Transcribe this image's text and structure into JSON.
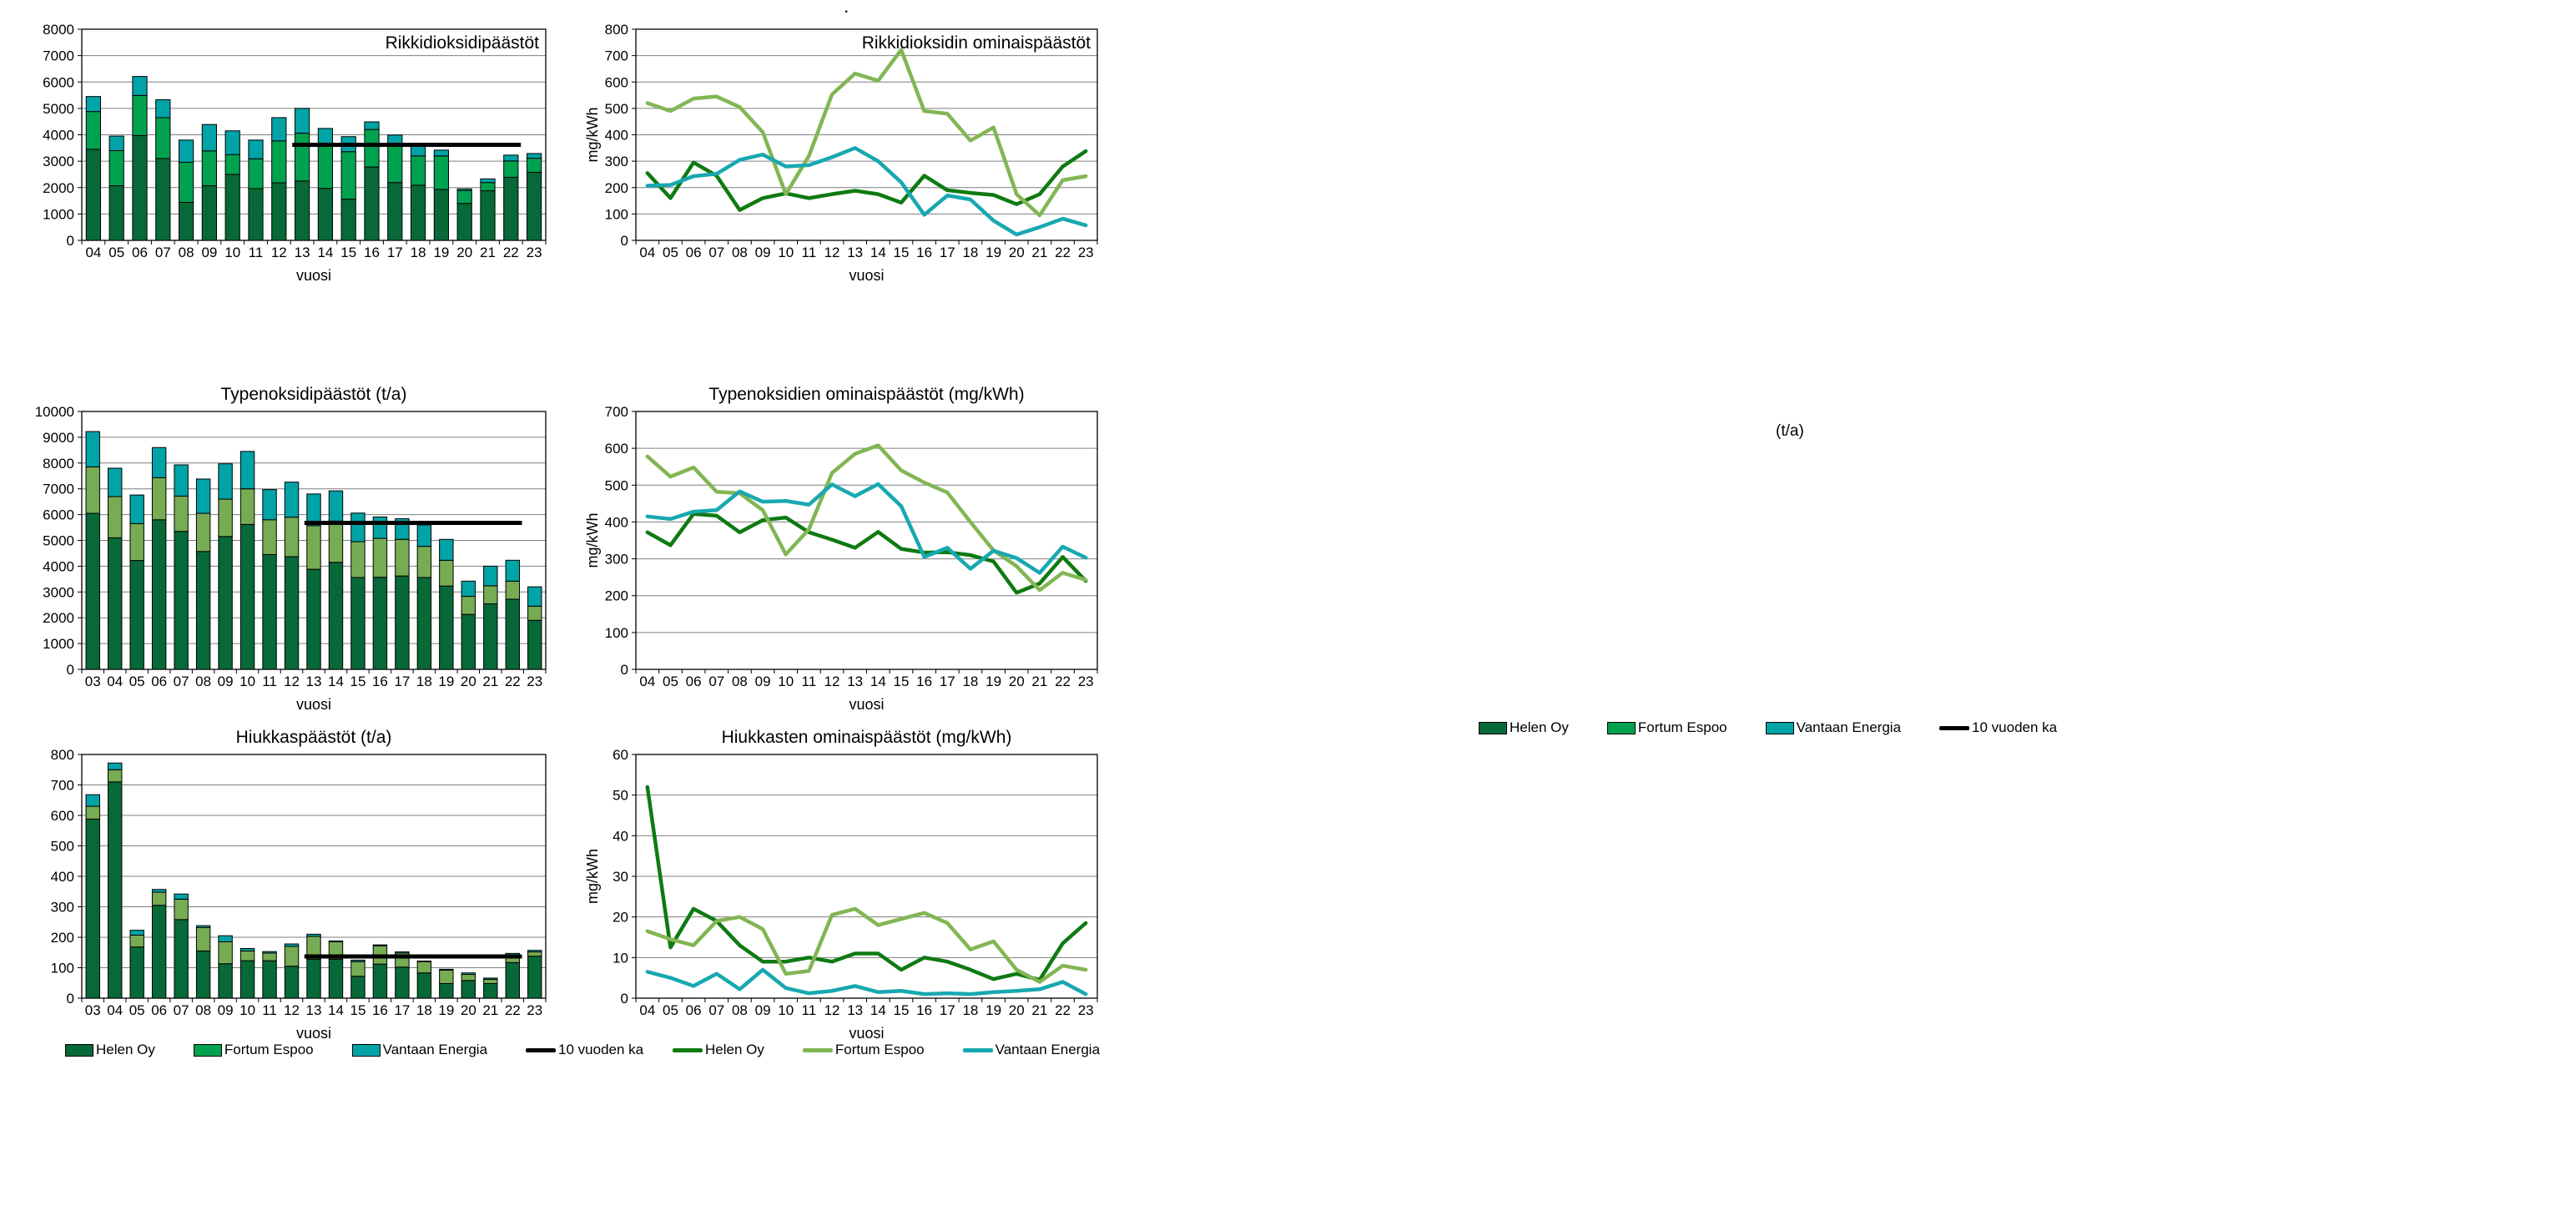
{
  "page": {
    "background": "#ffffff",
    "annotations": {
      "ta_label": "(t/a)",
      "stray_dot": "."
    }
  },
  "colors": {
    "bar_helen": "#066937",
    "bar_fortum_green": "#00A24F",
    "bar_fortum_light": "#76AC53",
    "bar_vantaan": "#00A3A6",
    "line_helen": "#0E7A12",
    "line_fortum": "#82B654",
    "line_vantaan": "#17A8B0",
    "avg_line": "#000000",
    "gridline": "#7F7F7F"
  },
  "legends": {
    "bar_left": {
      "items": [
        {
          "label": "Helen Oy",
          "color": "#066937",
          "swatch": "box"
        },
        {
          "label": "Fortum Espoo",
          "color": "#00A24F",
          "swatch": "box"
        },
        {
          "label": "Vantaan Energia",
          "color": "#00A3A6",
          "swatch": "box"
        },
        {
          "label": "10 vuoden ka",
          "color": "#000000",
          "swatch": "line"
        }
      ]
    },
    "line_bottom": {
      "items": [
        {
          "label": "Helen Oy",
          "color": "#0E7A12",
          "swatch": "line"
        },
        {
          "label": "Fortum Espoo",
          "color": "#82B654",
          "swatch": "line"
        },
        {
          "label": "Vantaan Energia",
          "color": "#17A8B0",
          "swatch": "line"
        }
      ]
    },
    "bar_right": {
      "items": [
        {
          "label": "Helen Oy",
          "color": "#066937",
          "swatch": "box"
        },
        {
          "label": "Fortum Espoo",
          "color": "#00A24F",
          "swatch": "box"
        },
        {
          "label": "Vantaan Energia",
          "color": "#00A3A6",
          "swatch": "box"
        },
        {
          "label": "10 vuoden ka",
          "color": "#000000",
          "swatch": "line"
        }
      ]
    }
  },
  "chart_data": [
    {
      "id": "so2-emissions",
      "type": "bar",
      "stacked": true,
      "title": "Rikkidioksidipäästöt",
      "title_position": "inside-top-right",
      "xlabel": "vuosi",
      "ylabel": "",
      "ylim": [
        0,
        8000
      ],
      "ytick_interval": 1000,
      "grid": true,
      "categories": [
        "04",
        "05",
        "06",
        "07",
        "08",
        "09",
        "10",
        "11",
        "12",
        "13",
        "14",
        "15",
        "16",
        "17",
        "18",
        "19",
        "20",
        "21",
        "22",
        "23"
      ],
      "series": [
        {
          "name": "Helen Oy",
          "color": "#066937",
          "values": [
            3450,
            2070,
            3970,
            3100,
            1440,
            2070,
            2500,
            1960,
            2180,
            2250,
            1970,
            1560,
            2780,
            2190,
            2090,
            1930,
            1400,
            1880,
            2390,
            2580
          ]
        },
        {
          "name": "Fortum Espoo",
          "color": "#00A24F",
          "values": [
            1430,
            1330,
            1520,
            1550,
            1520,
            1320,
            750,
            1130,
            1590,
            1810,
            1590,
            1800,
            1420,
            1400,
            1110,
            1270,
            490,
            310,
            620,
            530
          ]
        },
        {
          "name": "Vantaan Energia",
          "color": "#00A3A6",
          "values": [
            570,
            550,
            720,
            680,
            840,
            1000,
            900,
            710,
            880,
            940,
            680,
            570,
            290,
            400,
            450,
            220,
            60,
            140,
            220,
            180
          ]
        }
      ],
      "avg_line": {
        "name": "10 vuoden ka",
        "color": "#000000",
        "from": "13",
        "to": "22",
        "value": 3620
      }
    },
    {
      "id": "so2-specific-emissions",
      "type": "line",
      "title": "Rikkidioksidin ominaispäästöt",
      "title_position": "inside-top-right",
      "xlabel": "vuosi",
      "ylabel": "mg/kWh",
      "ylim": [
        0,
        800
      ],
      "ytick_interval": 100,
      "grid": true,
      "categories": [
        "04",
        "05",
        "06",
        "07",
        "08",
        "09",
        "10",
        "11",
        "12",
        "13",
        "14",
        "15",
        "16",
        "17",
        "18",
        "19",
        "20",
        "21",
        "22",
        "23"
      ],
      "series": [
        {
          "name": "Helen Oy",
          "color": "#0E7A12",
          "values": [
            255,
            160,
            295,
            245,
            115,
            160,
            178,
            160,
            175,
            188,
            175,
            143,
            245,
            190,
            180,
            172,
            137,
            175,
            280,
            338
          ]
        },
        {
          "name": "Fortum Espoo",
          "color": "#82B654",
          "values": [
            520,
            490,
            537,
            545,
            505,
            410,
            175,
            320,
            553,
            632,
            605,
            722,
            490,
            480,
            378,
            428,
            175,
            95,
            228,
            243
          ]
        },
        {
          "name": "Vantaan Energia",
          "color": "#17A8B0",
          "values": [
            207,
            210,
            243,
            252,
            305,
            325,
            280,
            285,
            315,
            350,
            300,
            220,
            97,
            170,
            155,
            75,
            22,
            50,
            82,
            57
          ]
        }
      ]
    },
    {
      "id": "nox-emissions",
      "type": "bar",
      "stacked": true,
      "title": "Typenoksidipäästöt (t/a)",
      "title_position": "above-center",
      "xlabel": "vuosi",
      "ylabel": "",
      "ylim": [
        0,
        10000
      ],
      "ytick_interval": 1000,
      "grid": true,
      "categories": [
        "03",
        "04",
        "05",
        "06",
        "07",
        "08",
        "09",
        "10",
        "11",
        "12",
        "13",
        "14",
        "15",
        "16",
        "17",
        "18",
        "19",
        "20",
        "21",
        "22",
        "23"
      ],
      "series": [
        {
          "name": "Helen Oy",
          "color": "#066937",
          "values": [
            6050,
            5100,
            4220,
            5800,
            5350,
            4570,
            5150,
            5620,
            4450,
            4370,
            3880,
            4150,
            3560,
            3570,
            3620,
            3560,
            3230,
            2130,
            2540,
            2720,
            1900
          ]
        },
        {
          "name": "Fortum Espoo",
          "color": "#76AC53",
          "values": [
            1800,
            1600,
            1430,
            1630,
            1370,
            1480,
            1450,
            1380,
            1350,
            1530,
            1690,
            1600,
            1390,
            1510,
            1420,
            1210,
            1000,
            700,
            700,
            700,
            550
          ]
        },
        {
          "name": "Vantaan Energia",
          "color": "#00A3A6",
          "values": [
            1370,
            1100,
            1110,
            1170,
            1210,
            1330,
            1370,
            1450,
            1170,
            1360,
            1230,
            1170,
            1110,
            830,
            800,
            830,
            810,
            590,
            760,
            810,
            750
          ]
        }
      ],
      "avg_line": {
        "name": "10 vuoden ka",
        "color": "#000000",
        "from": "13",
        "to": "22",
        "value": 5680
      }
    },
    {
      "id": "nox-specific-emissions",
      "type": "line",
      "title": "Typenoksidien ominaispäästöt (mg/kWh)",
      "title_position": "above-center",
      "xlabel": "vuosi",
      "ylabel": "mg/kWh",
      "ylim": [
        0,
        700
      ],
      "ytick_interval": 100,
      "grid": true,
      "categories": [
        "04",
        "05",
        "06",
        "07",
        "08",
        "09",
        "10",
        "11",
        "12",
        "13",
        "14",
        "15",
        "16",
        "17",
        "18",
        "19",
        "20",
        "21",
        "22",
        "23"
      ],
      "series": [
        {
          "name": "Helen Oy",
          "color": "#0E7A12",
          "values": [
            372,
            337,
            422,
            417,
            372,
            405,
            412,
            372,
            352,
            330,
            373,
            327,
            317,
            318,
            310,
            293,
            208,
            233,
            305,
            240
          ]
        },
        {
          "name": "Fortum Espoo",
          "color": "#82B654",
          "values": [
            578,
            523,
            548,
            482,
            478,
            432,
            312,
            380,
            533,
            585,
            608,
            540,
            507,
            480,
            400,
            323,
            280,
            215,
            262,
            243
          ]
        },
        {
          "name": "Vantaan Energia",
          "color": "#17A8B0",
          "values": [
            415,
            408,
            428,
            432,
            483,
            455,
            457,
            447,
            502,
            470,
            503,
            443,
            305,
            330,
            273,
            322,
            302,
            262,
            333,
            303
          ]
        }
      ]
    },
    {
      "id": "particulate-emissions",
      "type": "bar",
      "stacked": true,
      "title": "Hiukkaspäästöt (t/a)",
      "title_position": "above-center",
      "xlabel": "vuosi",
      "ylabel": "",
      "ylim": [
        0,
        800
      ],
      "ytick_interval": 100,
      "grid": true,
      "categories": [
        "03",
        "04",
        "05",
        "06",
        "07",
        "08",
        "09",
        "10",
        "11",
        "12",
        "13",
        "14",
        "15",
        "16",
        "17",
        "18",
        "19",
        "20",
        "21",
        "22",
        "23"
      ],
      "series": [
        {
          "name": "Helen Oy",
          "color": "#066937",
          "values": [
            588,
            710,
            168,
            305,
            258,
            155,
            113,
            123,
            123,
            105,
            128,
            128,
            72,
            112,
            102,
            83,
            48,
            58,
            48,
            117,
            138
          ]
        },
        {
          "name": "Fortum Espoo",
          "color": "#76AC53",
          "values": [
            42,
            40,
            39,
            43,
            67,
            77,
            72,
            32,
            25,
            65,
            75,
            57,
            48,
            60,
            46,
            37,
            44,
            20,
            14,
            23,
            14
          ]
        },
        {
          "name": "Vantaan Energia",
          "color": "#00A3A6",
          "values": [
            38,
            22,
            16,
            9,
            17,
            6,
            20,
            8,
            5,
            8,
            7,
            3,
            5,
            3,
            4,
            2,
            3,
            5,
            4,
            7,
            5
          ]
        }
      ],
      "avg_line": {
        "name": "10 vuoden ka",
        "color": "#000000",
        "from": "13",
        "to": "22",
        "value": 137
      }
    },
    {
      "id": "particulate-specific-emissions",
      "type": "line",
      "title": "Hiukkasten ominaispäästöt (mg/kWh)",
      "title_position": "above-center",
      "xlabel": "vuosi",
      "ylabel": "mg/kWh",
      "ylim": [
        0,
        60
      ],
      "ytick_interval": 10,
      "grid": true,
      "categories": [
        "04",
        "05",
        "06",
        "07",
        "08",
        "09",
        "10",
        "11",
        "12",
        "13",
        "14",
        "15",
        "16",
        "17",
        "18",
        "19",
        "20",
        "21",
        "22",
        "23"
      ],
      "series": [
        {
          "name": "Helen Oy",
          "color": "#0E7A12",
          "values": [
            52,
            12.5,
            22,
            19,
            13,
            9,
            9,
            10,
            9,
            11,
            11,
            7,
            10,
            9,
            7,
            4.7,
            6,
            4.5,
            13.5,
            18.5
          ]
        },
        {
          "name": "Fortum Espoo",
          "color": "#82B654",
          "values": [
            16.5,
            14.5,
            13,
            19,
            20,
            17,
            6,
            6.7,
            20.5,
            22,
            18,
            19.5,
            21,
            18.5,
            12,
            14,
            7,
            4,
            8,
            7
          ]
        },
        {
          "name": "Vantaan Energia",
          "color": "#17A8B0",
          "values": [
            6.5,
            5,
            3,
            6,
            2.2,
            7,
            2.5,
            1.2,
            1.8,
            3,
            1.5,
            1.8,
            1,
            1.2,
            1,
            1.5,
            1.8,
            2.2,
            4,
            1
          ]
        }
      ]
    }
  ]
}
